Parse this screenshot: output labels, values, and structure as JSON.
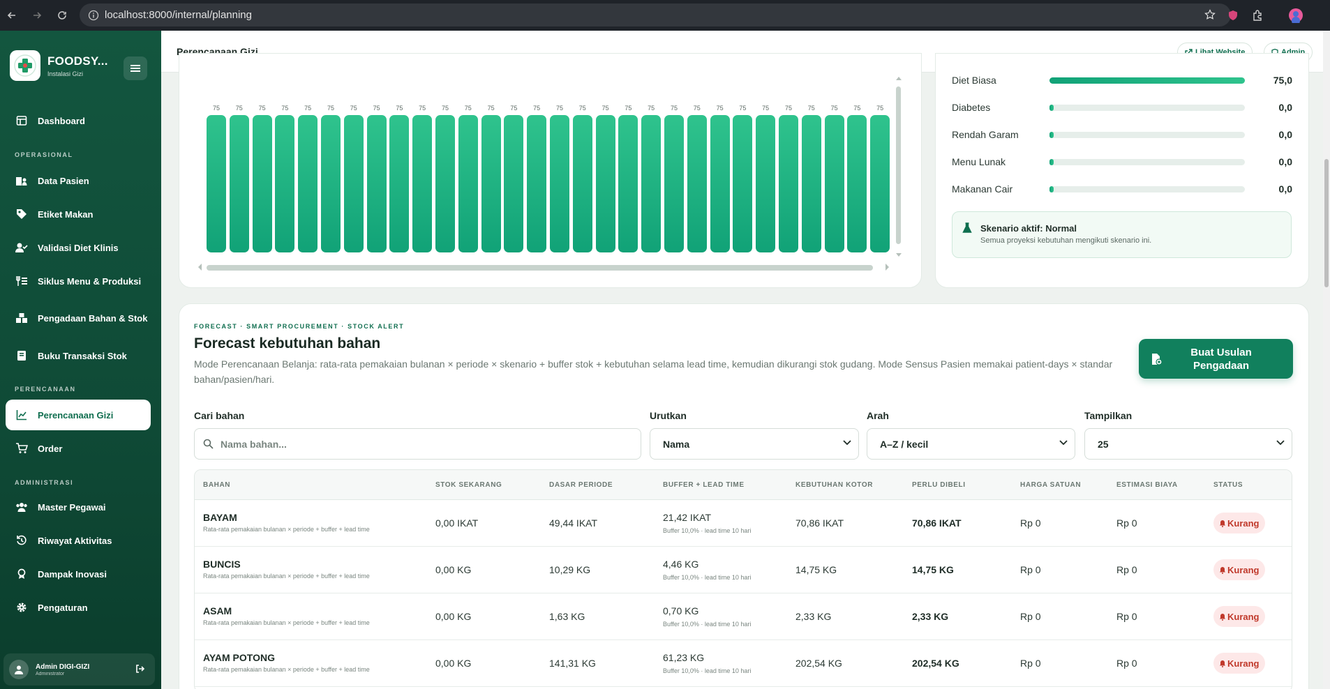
{
  "browser": {
    "url": "localhost:8000/internal/planning"
  },
  "sidebar": {
    "brand_name": "FOODSY...",
    "brand_sub": "Instalasi Gizi",
    "sections": {
      "operasional": "OPERASIONAL",
      "perencanaan": "PERENCANAAN",
      "administrasi": "ADMINISTRASI"
    },
    "items": {
      "dashboard": "Dashboard",
      "data_pasien": "Data Pasien",
      "etiket_makan": "Etiket Makan",
      "validasi": "Validasi Diet Klinis",
      "siklus": "Siklus Menu & Produksi",
      "pengadaan": "Pengadaan Bahan & Stok",
      "buku": "Buku Transaksi Stok",
      "perencanaan_gizi": "Perencanaan Gizi",
      "order": "Order",
      "master_pegawai": "Master Pegawai",
      "riwayat": "Riwayat Aktivitas",
      "dampak": "Dampak Inovasi",
      "pengaturan": "Pengaturan"
    },
    "user": {
      "name": "Admin DIGI-GIZI",
      "role": "Administrator"
    }
  },
  "topbar": {
    "title": "Perencanaan Gizi",
    "lihat_website": "Lihat Website",
    "admin": "Admin"
  },
  "chart_data": {
    "type": "bar",
    "categories": [],
    "values": [
      75,
      75,
      75,
      75,
      75,
      75,
      75,
      75,
      75,
      75,
      75,
      75,
      75,
      75,
      75,
      75,
      75,
      75,
      75,
      75,
      75,
      75,
      75,
      75,
      75,
      75,
      75,
      75,
      75,
      75
    ],
    "labels": [
      "75",
      "75",
      "75",
      "75",
      "75",
      "75",
      "75",
      "75",
      "75",
      "75",
      "75",
      "75",
      "75",
      "75",
      "75",
      "75",
      "75",
      "75",
      "75",
      "75",
      "75",
      "75",
      "75",
      "75",
      "75",
      "75",
      "75",
      "75",
      "75",
      "75"
    ],
    "title": "",
    "xlabel": "",
    "ylabel": ""
  },
  "diet": [
    {
      "label": "Diet Biasa",
      "value": "75,0",
      "fill": 1.0
    },
    {
      "label": "Diabetes",
      "value": "0,0",
      "fill": 0.0
    },
    {
      "label": "Rendah Garam",
      "value": "0,0",
      "fill": 0.0
    },
    {
      "label": "Menu Lunak",
      "value": "0,0",
      "fill": 0.0
    },
    {
      "label": "Makanan Cair",
      "value": "0,0",
      "fill": 0.0
    }
  ],
  "scenario": {
    "title": "Skenario aktif: Normal",
    "sub": "Semua proyeksi kebutuhan mengikuti skenario ini."
  },
  "forecast": {
    "eyebrow": "FORECAST · SMART PROCUREMENT · STOCK ALERT",
    "title": "Forecast kebutuhan bahan",
    "desc": "Mode Perencanaan Belanja: rata-rata pemakaian bulanan × periode × skenario + buffer stok + kebutuhan selama lead time, kemudian dikurangi stok gudang. Mode Sensus Pasien memakai patient-days × standar bahan/pasien/hari.",
    "cta": "Buat Usulan Pengadaan"
  },
  "filters": {
    "search_label": "Cari bahan",
    "search_placeholder": "Nama bahan...",
    "sort_label": "Urutkan",
    "sort_value": "Nama",
    "dir_label": "Arah",
    "dir_value": "A–Z / kecil",
    "show_label": "Tampilkan",
    "show_value": "25"
  },
  "table": {
    "headers": [
      "BAHAN",
      "STOK SEKARANG",
      "DASAR PERIODE",
      "BUFFER + LEAD TIME",
      "KEBUTUHAN KOTOR",
      "PERLU DIBELI",
      "HARGA SATUAN",
      "ESTIMASI BIAYA",
      "STATUS"
    ],
    "rows": [
      {
        "name": "BAYAM",
        "sub": "Rata-rata pemakaian bulanan × periode + buffer + lead time",
        "stok": "0,00 IKAT",
        "dasar": "49,44 IKAT",
        "buffer": "21,42 IKAT",
        "buffer_sub": "Buffer 10,0% · lead time 10 hari",
        "kotor": "70,86 IKAT",
        "beli": "70,86 IKAT",
        "harga": "Rp 0",
        "biaya": "Rp 0",
        "status": "Kurang"
      },
      {
        "name": "BUNCIS",
        "sub": "Rata-rata pemakaian bulanan × periode + buffer + lead time",
        "stok": "0,00 KG",
        "dasar": "10,29 KG",
        "buffer": "4,46 KG",
        "buffer_sub": "Buffer 10,0% · lead time 10 hari",
        "kotor": "14,75 KG",
        "beli": "14,75 KG",
        "harga": "Rp 0",
        "biaya": "Rp 0",
        "status": "Kurang"
      },
      {
        "name": "ASAM",
        "sub": "Rata-rata pemakaian bulanan × periode + buffer + lead time",
        "stok": "0,00 KG",
        "dasar": "1,63 KG",
        "buffer": "0,70 KG",
        "buffer_sub": "Buffer 10,0% · lead time 10 hari",
        "kotor": "2,33 KG",
        "beli": "2,33 KG",
        "harga": "Rp 0",
        "biaya": "Rp 0",
        "status": "Kurang"
      },
      {
        "name": "AYAM POTONG",
        "sub": "Rata-rata pemakaian bulanan × periode + buffer + lead time",
        "stok": "0,00 KG",
        "dasar": "141,31 KG",
        "buffer": "61,23 KG",
        "buffer_sub": "Buffer 10,0% · lead time 10 hari",
        "kotor": "202,54 KG",
        "beli": "202,54 KG",
        "harga": "Rp 0",
        "biaya": "Rp 0",
        "status": "Kurang"
      }
    ]
  },
  "colors": {
    "accent": "#11805d",
    "sidebar": "#13563f",
    "bar": "#2fc38d",
    "danger": "#c0392b"
  }
}
